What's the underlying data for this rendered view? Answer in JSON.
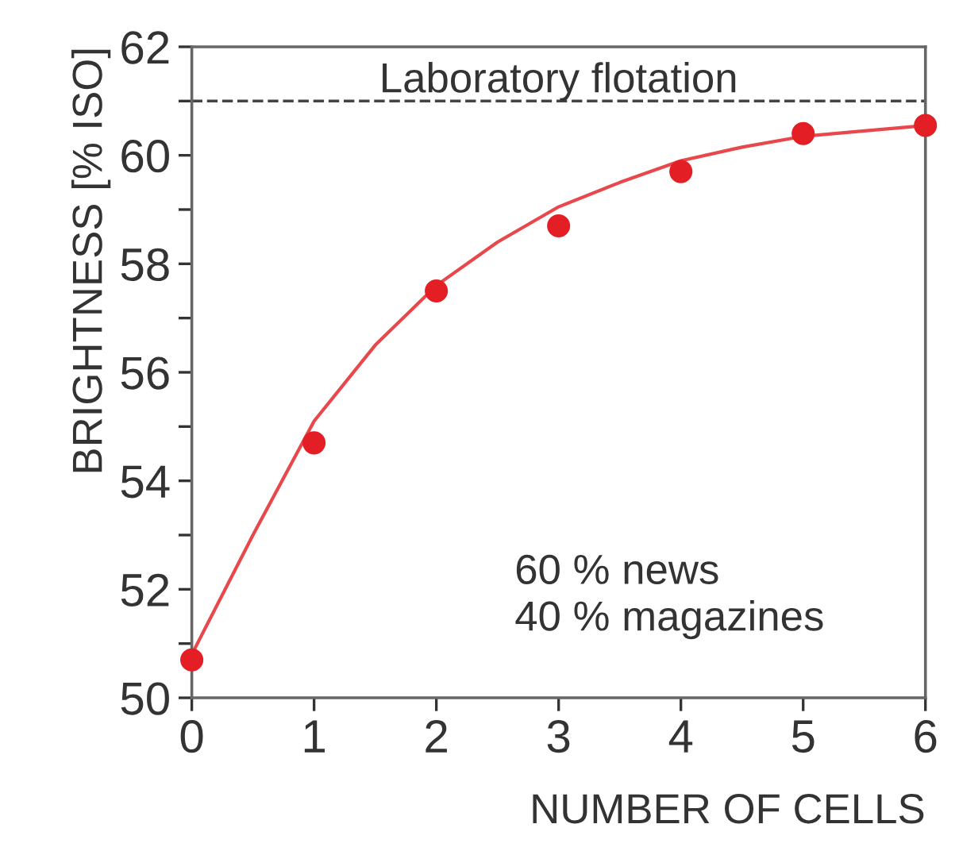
{
  "chart_data": {
    "type": "scatter",
    "xlabel": "NUMBER OF CELLS",
    "ylabel": "BRIGHTNESS [% ISO]",
    "x": [
      0,
      1,
      2,
      3,
      4,
      5,
      6
    ],
    "series": [
      {
        "color": "#e31e24",
        "values": [
          50.7,
          54.7,
          57.5,
          58.7,
          59.7,
          60.4,
          60.55
        ],
        "marker": "circle"
      },
      {
        "type": "line",
        "color": "#e8474b",
        "x": [
          0,
          0.5,
          1,
          1.5,
          2,
          2.5,
          3,
          3.5,
          4,
          4.5,
          5,
          5.5,
          6
        ],
        "values": [
          50.8,
          53.0,
          55.1,
          56.5,
          57.6,
          58.4,
          59.05,
          59.5,
          59.9,
          60.15,
          60.35,
          60.45,
          60.55
        ],
        "marker": "none"
      }
    ],
    "xlim": [
      0,
      6
    ],
    "xticks": [
      0,
      1,
      2,
      3,
      4,
      5,
      6
    ],
    "ylim": [
      50,
      62
    ],
    "yticks": [
      50,
      {
        "value": 51,
        "label": null
      },
      52,
      {
        "value": 53,
        "label": null
      },
      54,
      {
        "value": 55,
        "label": null
      },
      56,
      {
        "value": 57,
        "label": null
      },
      58,
      {
        "value": 59,
        "label": null
      },
      60,
      {
        "value": 61,
        "label": null
      },
      62
    ],
    "ref_lines": [
      {
        "axis": "y",
        "value": 61,
        "label": "Laboratory flotation",
        "color": "#444444",
        "line_style": "dashed"
      }
    ],
    "annotations": [
      "60 % news\n40 % magazines"
    ],
    "grid": false,
    "legend": false
  }
}
